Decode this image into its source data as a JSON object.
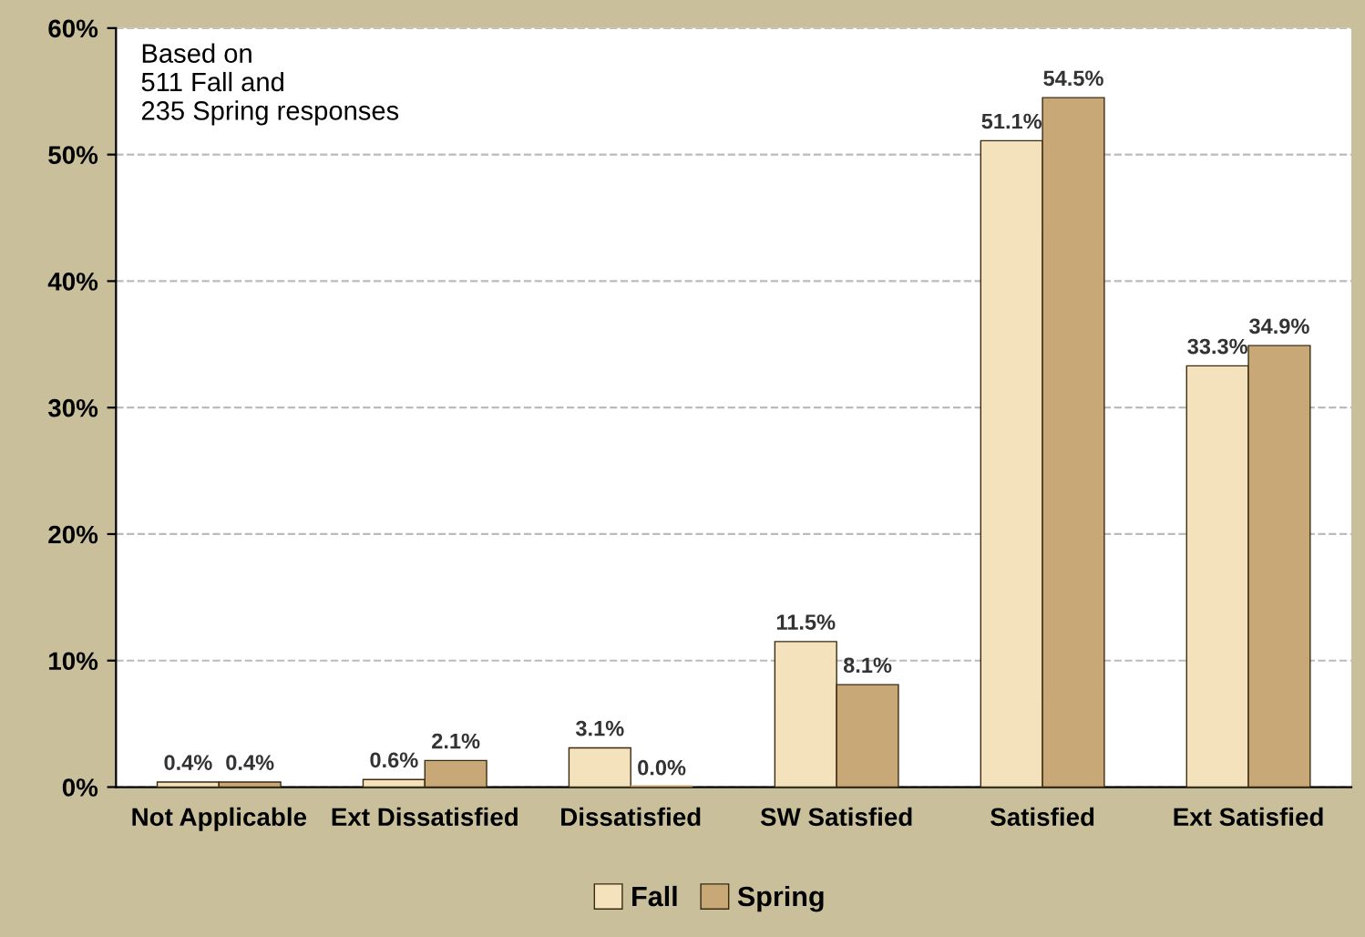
{
  "chart_data": {
    "type": "bar",
    "categories": [
      "Not Applicable",
      "Ext Dissatisfied",
      "Dissatisfied",
      "SW Satisfied",
      "Satisfied",
      "Ext Satisfied"
    ],
    "series": [
      {
        "name": "Fall",
        "color": "#f3e2bb",
        "values": [
          0.4,
          0.6,
          3.1,
          11.5,
          51.1,
          33.3
        ],
        "value_labels": [
          "0.4%",
          "0.6%",
          "3.1%",
          "11.5%",
          "51.1%",
          "33.3%"
        ]
      },
      {
        "name": "Spring",
        "color": "#c9a877",
        "values": [
          0.4,
          2.1,
          0.0,
          8.1,
          54.5,
          34.9
        ],
        "value_labels": [
          "0.4%",
          "2.1%",
          "0.0%",
          "8.1%",
          "54.5%",
          "34.9%"
        ]
      }
    ],
    "ylim": [
      0,
      60
    ],
    "yticks": [
      {
        "value": 0,
        "label": "0%"
      },
      {
        "value": 10,
        "label": "10%"
      },
      {
        "value": 20,
        "label": "20%"
      },
      {
        "value": 30,
        "label": "30%"
      },
      {
        "value": 40,
        "label": "40%"
      },
      {
        "value": 50,
        "label": "50%"
      },
      {
        "value": 60,
        "label": "60%"
      }
    ],
    "grid": "y",
    "legend": "bottom",
    "annotations": [
      "Based on\n511 Fall and\n235 Spring responses"
    ]
  }
}
